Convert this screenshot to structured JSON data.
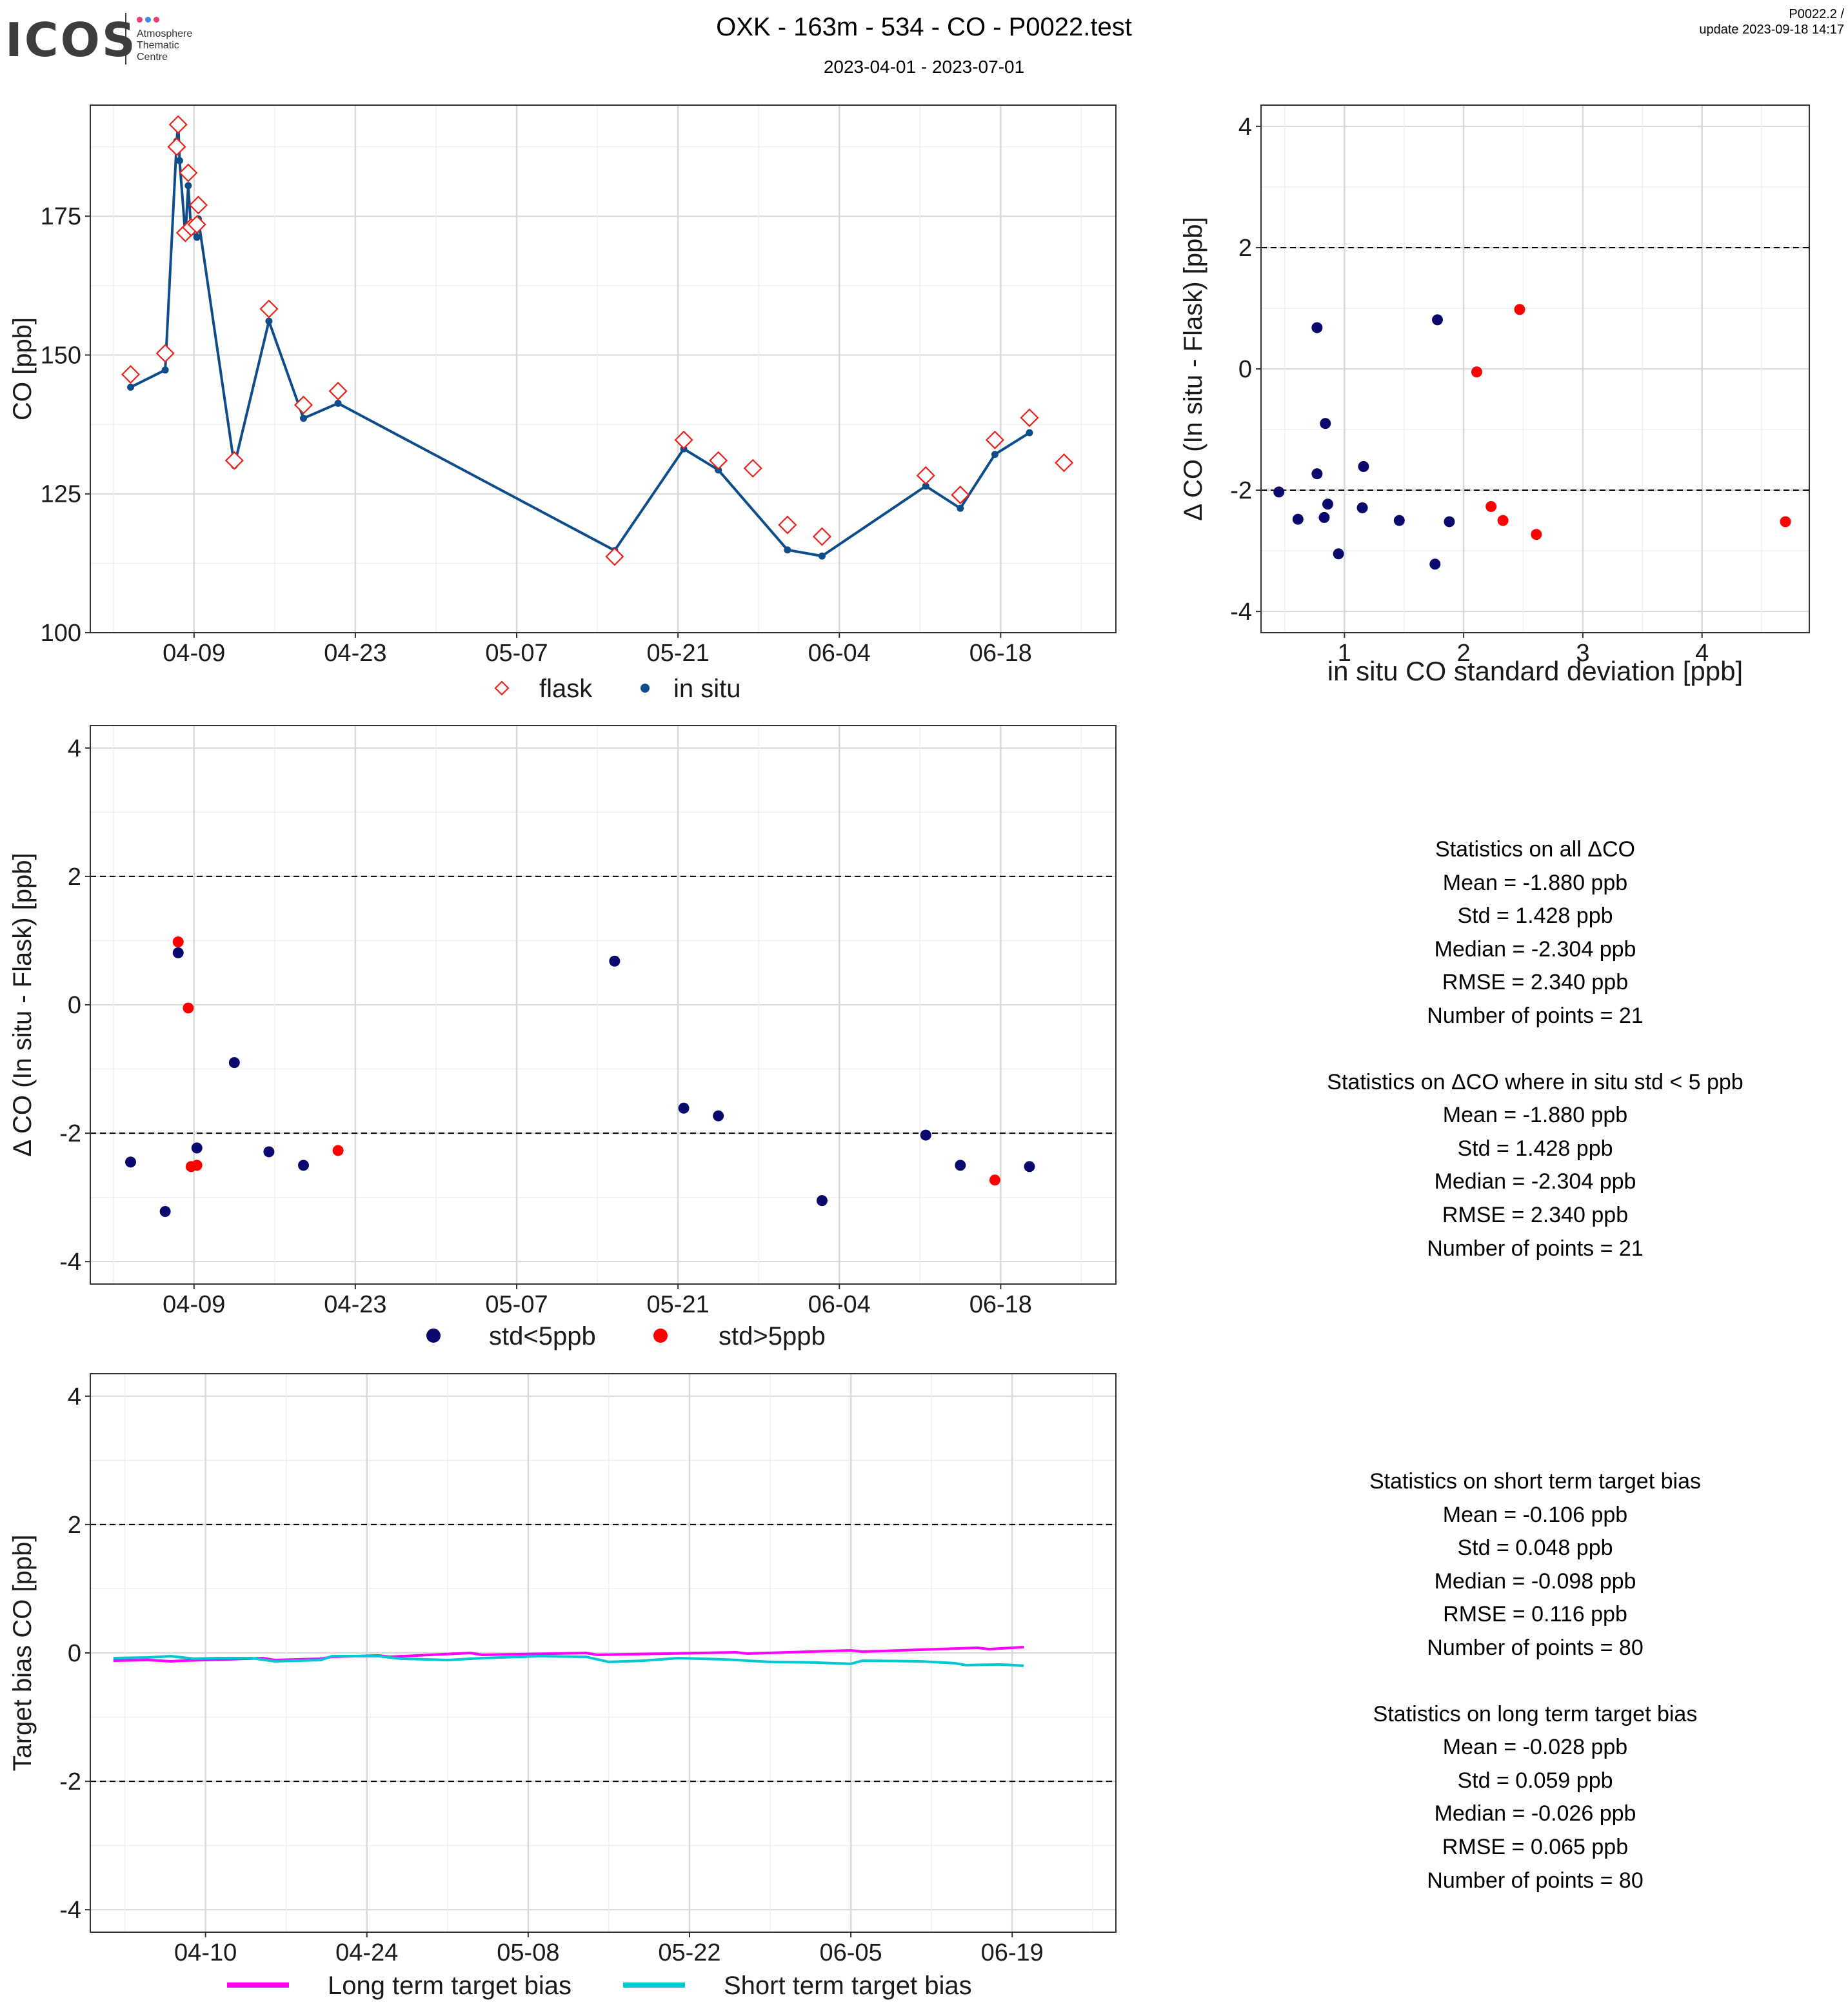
{
  "header": {
    "title": "OXK - 163m - 534 - CO - P0022.test",
    "subtitle": "2023-04-01 - 2023-07-01",
    "version_line1": "P0022.2 /",
    "version_line2": "update  2023-09-18 14:17"
  },
  "logo": {
    "wordmark": "ICOS",
    "sub1": "Atmosphere",
    "sub2": "Thematic",
    "sub3": "Centre",
    "dot_colors": [
      "#e63c78",
      "#3c8ce6",
      "#e63c78"
    ]
  },
  "colors": {
    "flask": "#e8221b",
    "insitu": "#0e4c8a",
    "std_low": "#0a0a6e",
    "std_high": "#ff0000",
    "long_term": "#ff00ff",
    "short_term": "#00c8d2",
    "grid_major": "#d9d9d9",
    "grid_minor": "#efefef"
  },
  "chart_data": [
    {
      "id": "timeseries",
      "type": "line",
      "ylabel": "CO [ppb]",
      "ylim": [
        100,
        195
      ],
      "yticks": [
        100,
        125,
        150,
        175
      ],
      "xlim": [
        "2023-03-31",
        "2023-06-28"
      ],
      "xticks": [
        "04-09",
        "04-23",
        "05-07",
        "05-21",
        "06-04",
        "06-18"
      ],
      "legend": [
        "flask",
        "in situ"
      ],
      "grid": true,
      "series": [
        {
          "name": "flask",
          "kind": "marker-diamond",
          "x": [
            "2023-04-03T12",
            "2023-04-06T12",
            "2023-04-07T12",
            "2023-04-07T15",
            "2023-04-08T06",
            "2023-04-08T12",
            "2023-04-08T18",
            "2023-04-09T06",
            "2023-04-09T09",
            "2023-04-12T12",
            "2023-04-15T12",
            "2023-04-18T12",
            "2023-04-21T12",
            "2023-05-15T12",
            "2023-05-21T12",
            "2023-05-24T12",
            "2023-05-27T12",
            "2023-05-30T12",
            "2023-06-02T12",
            "2023-06-11T12",
            "2023-06-14T12",
            "2023-06-17T12",
            "2023-06-20T12",
            "2023-06-23T12"
          ],
          "y": [
            146.5,
            150.3,
            187.5,
            191.5,
            172.0,
            182.8,
            173.0,
            173.5,
            177.0,
            131.0,
            158.3,
            141.0,
            143.5,
            113.7,
            134.7,
            131.0,
            129.6,
            119.4,
            117.3,
            128.3,
            124.8,
            134.7,
            138.7,
            130.6
          ]
        },
        {
          "name": "in situ",
          "kind": "line-points",
          "x": [
            "2023-04-03T12",
            "2023-04-06T12",
            "2023-04-07T12",
            "2023-04-07T15",
            "2023-04-07T18",
            "2023-04-08T06",
            "2023-04-08T12",
            "2023-04-08T18",
            "2023-04-09T06",
            "2023-04-09T09",
            "2023-04-12T12",
            "2023-04-15T12",
            "2023-04-18T12",
            "2023-04-21T12",
            "2023-05-15T12",
            "2023-05-21T12",
            "2023-05-24T12",
            "2023-05-30T12",
            "2023-06-02T12",
            "2023-06-11T12",
            "2023-06-14T12",
            "2023-06-17T12",
            "2023-06-20T12"
          ],
          "y": [
            144.2,
            147.3,
            188.5,
            192.0,
            185.0,
            171.5,
            180.5,
            172.5,
            171.2,
            174.5,
            130.1,
            156.1,
            138.6,
            141.3,
            114.8,
            133.1,
            129.3,
            114.9,
            113.8,
            126.4,
            122.4,
            132.1,
            136.0
          ]
        }
      ]
    },
    {
      "id": "scatter-std",
      "type": "scatter",
      "xlabel": "in situ CO standard deviation [ppb]",
      "ylabel": "Δ CO (In situ - Flask) [ppb]",
      "xlim": [
        0.3,
        4.9
      ],
      "ylim": [
        -4.35,
        4.35
      ],
      "xticks": [
        1,
        2,
        3,
        4
      ],
      "yticks": [
        -4,
        -2,
        0,
        2,
        4
      ],
      "hlines": [
        -2,
        2
      ],
      "grid": true,
      "series": [
        {
          "name": "std<5ppb",
          "x": [
            0.45,
            0.61,
            0.77,
            0.77,
            0.83,
            0.84,
            0.86,
            0.95,
            1.15,
            1.16,
            1.46,
            1.76,
            1.78,
            1.88
          ],
          "y": [
            -2.03,
            -2.48,
            0.68,
            -1.73,
            -2.45,
            -0.9,
            -2.23,
            -3.05,
            -2.29,
            -1.61,
            -2.5,
            -3.22,
            0.81,
            -2.52
          ]
        },
        {
          "name": "std>5ppb",
          "x": [
            2.11,
            2.23,
            2.33,
            2.47,
            2.61,
            4.7
          ],
          "y": [
            -0.05,
            -2.27,
            -2.5,
            0.98,
            -2.73,
            -2.52
          ]
        }
      ]
    },
    {
      "id": "delta-time",
      "type": "scatter",
      "ylabel": "Δ CO (In situ - Flask) [ppb]",
      "xlim": [
        "2023-03-31",
        "2023-06-28"
      ],
      "ylim": [
        -4.35,
        4.35
      ],
      "xticks": [
        "04-09",
        "04-23",
        "05-07",
        "05-21",
        "06-04",
        "06-18"
      ],
      "yticks": [
        -4,
        -2,
        0,
        2,
        4
      ],
      "hlines": [
        -2,
        2
      ],
      "legend": [
        "std<5ppb",
        "std>5ppb"
      ],
      "grid": true,
      "series": [
        {
          "name": "std<5ppb",
          "x": [
            "2023-04-03T12",
            "2023-04-06T12",
            "2023-04-07T15",
            "2023-04-09T06",
            "2023-04-12T12",
            "2023-04-15T12",
            "2023-04-18T12",
            "2023-05-15T12",
            "2023-05-21T12",
            "2023-05-24T12",
            "2023-06-02T12",
            "2023-06-11T12",
            "2023-06-14T12",
            "2023-06-20T12"
          ],
          "y": [
            -2.45,
            -3.22,
            0.81,
            -2.23,
            -0.9,
            -2.29,
            -2.5,
            0.68,
            -1.61,
            -1.73,
            -3.05,
            -2.03,
            -2.5,
            -2.52
          ]
        },
        {
          "name": "std>5ppb",
          "x": [
            "2023-04-07T15",
            "2023-04-08T12",
            "2023-04-08T18",
            "2023-04-09T06",
            "2023-04-21T12",
            "2023-06-17T12"
          ],
          "y": [
            0.98,
            -0.05,
            -2.52,
            -2.5,
            -2.27,
            -2.73
          ]
        }
      ]
    },
    {
      "id": "target-bias",
      "type": "line",
      "ylabel": "Target bias CO [ppb]",
      "xlim": [
        "2023-03-31",
        "2023-06-28"
      ],
      "ylim": [
        -4.35,
        4.35
      ],
      "xticks": [
        "04-10",
        "04-24",
        "05-08",
        "05-22",
        "06-05",
        "06-19"
      ],
      "yticks": [
        -4,
        -2,
        0,
        2,
        4
      ],
      "hlines": [
        -2,
        2
      ],
      "legend": [
        "Long term target bias",
        "Short term target bias"
      ],
      "grid": true,
      "series": [
        {
          "name": "Long term target bias",
          "x": [
            "2023-04-02",
            "2023-04-05",
            "2023-04-07",
            "2023-04-08",
            "2023-04-12",
            "2023-04-15",
            "2023-04-16",
            "2023-04-20",
            "2023-04-21",
            "2023-04-25",
            "2023-04-26",
            "2023-05-03",
            "2023-05-04",
            "2023-05-13",
            "2023-05-14",
            "2023-05-26",
            "2023-05-27",
            "2023-06-05",
            "2023-06-06",
            "2023-06-16",
            "2023-06-17",
            "2023-06-20"
          ],
          "y": [
            -0.12,
            -0.11,
            -0.13,
            -0.12,
            -0.1,
            -0.08,
            -0.11,
            -0.09,
            -0.06,
            -0.04,
            -0.06,
            0.0,
            -0.03,
            0.0,
            -0.03,
            0.01,
            -0.01,
            0.04,
            0.02,
            0.08,
            0.06,
            0.09
          ]
        },
        {
          "name": "Short term target bias",
          "x": [
            "2023-04-02",
            "2023-04-05",
            "2023-04-07",
            "2023-04-09",
            "2023-04-11",
            "2023-04-14",
            "2023-04-16",
            "2023-04-20",
            "2023-04-21",
            "2023-04-25",
            "2023-04-27",
            "2023-05-01",
            "2023-05-04",
            "2023-05-09",
            "2023-05-13",
            "2023-05-15",
            "2023-05-18",
            "2023-05-21",
            "2023-05-25",
            "2023-05-29",
            "2023-06-02",
            "2023-06-05",
            "2023-06-06",
            "2023-06-11",
            "2023-06-14",
            "2023-06-15",
            "2023-06-18",
            "2023-06-20"
          ],
          "y": [
            -0.08,
            -0.07,
            -0.05,
            -0.09,
            -0.08,
            -0.08,
            -0.13,
            -0.11,
            -0.05,
            -0.05,
            -0.09,
            -0.11,
            -0.08,
            -0.05,
            -0.06,
            -0.14,
            -0.12,
            -0.08,
            -0.1,
            -0.14,
            -0.15,
            -0.17,
            -0.12,
            -0.13,
            -0.16,
            -0.19,
            -0.18,
            -0.2
          ]
        }
      ]
    }
  ],
  "stats": {
    "all": {
      "title": "Statistics on all ΔCO",
      "mean": "Mean =  -1.880 ppb",
      "std": "Std =  1.428 ppb",
      "median": "Median =  -2.304 ppb",
      "rmse": "RMSE =  2.340 ppb",
      "n": "Number of points =  21"
    },
    "filtered": {
      "title": "Statistics on ΔCO where in situ std < 5 ppb",
      "mean": "Mean =  -1.880 ppb",
      "std": "Std =  1.428 ppb",
      "median": "Median =  -2.304 ppb",
      "rmse": "RMSE =  2.340 ppb",
      "n": "Number of points =  21"
    },
    "short": {
      "title": "Statistics on short term target bias",
      "mean": "Mean =  -0.106 ppb",
      "std": "Std =  0.048 ppb",
      "median": "Median =  -0.098 ppb",
      "rmse": "RMSE =  0.116 ppb",
      "n": "Number of points =  80"
    },
    "long": {
      "title": "Statistics on long term target bias",
      "mean": "Mean =  -0.028 ppb",
      "std": "Std =  0.059 ppb",
      "median": "Median =  -0.026 ppb",
      "rmse": "RMSE =  0.065 ppb",
      "n": "Number of points =  80"
    }
  }
}
